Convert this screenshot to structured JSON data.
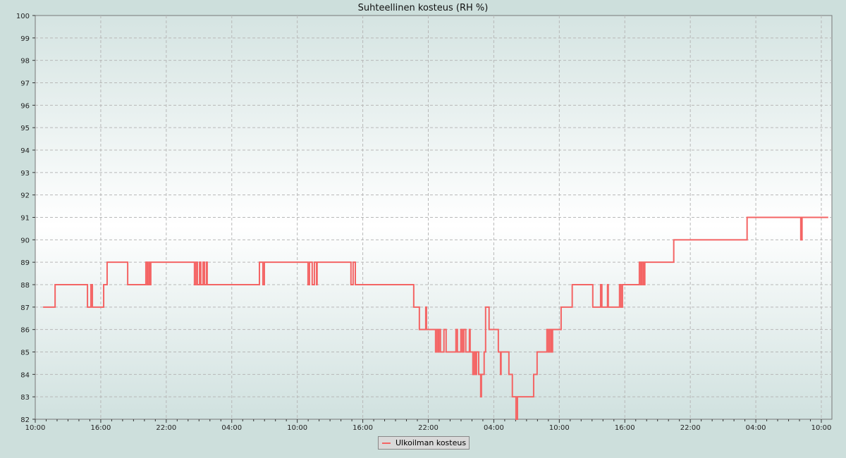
{
  "chart_data": {
    "type": "line",
    "step": true,
    "title": "Suhteellinen kosteus (RH %)",
    "xlabel": "",
    "ylabel": "",
    "ylim": [
      82,
      100
    ],
    "yticks": [
      "82",
      "83",
      "84",
      "85",
      "86",
      "87",
      "88",
      "89",
      "90",
      "91",
      "92",
      "93",
      "94",
      "95",
      "96",
      "97",
      "98",
      "99",
      "100"
    ],
    "xticks": [
      "10:00",
      "16:00",
      "22:00",
      "04:00",
      "10:00",
      "16:00",
      "22:00",
      "04:00",
      "10:00",
      "16:00",
      "22:00",
      "04:00",
      "10:00"
    ],
    "grid": true,
    "legend_placement": "bottom",
    "series": [
      {
        "name": "Ulkoilman kosteus",
        "color": "#f46464",
        "points_day_time_value": [
          [
            1,
            "10:43",
            87
          ],
          [
            1,
            "11:49",
            88
          ],
          [
            1,
            "14:47",
            87
          ],
          [
            1,
            "15:06",
            88
          ],
          [
            1,
            "15:14",
            87
          ],
          [
            1,
            "16:16",
            88
          ],
          [
            1,
            "16:35",
            89
          ],
          [
            1,
            "18:28",
            88
          ],
          [
            1,
            "20:08",
            89
          ],
          [
            1,
            "20:16",
            88
          ],
          [
            1,
            "20:24",
            89
          ],
          [
            1,
            "20:31",
            88
          ],
          [
            1,
            "20:35",
            89
          ],
          [
            2,
            "00:35",
            88
          ],
          [
            2,
            "00:43",
            89
          ],
          [
            2,
            "00:51",
            88
          ],
          [
            2,
            "01:03",
            89
          ],
          [
            2,
            "01:10",
            88
          ],
          [
            2,
            "01:22",
            89
          ],
          [
            2,
            "01:30",
            88
          ],
          [
            2,
            "01:41",
            89
          ],
          [
            2,
            "01:45",
            88
          ],
          [
            2,
            "06:32",
            89
          ],
          [
            2,
            "06:51",
            88
          ],
          [
            2,
            "06:59",
            89
          ],
          [
            2,
            "10:59",
            88
          ],
          [
            2,
            "11:07",
            89
          ],
          [
            2,
            "11:22",
            88
          ],
          [
            2,
            "11:34",
            89
          ],
          [
            2,
            "11:46",
            88
          ],
          [
            2,
            "11:49",
            89
          ],
          [
            2,
            "14:55",
            88
          ],
          [
            2,
            "15:07",
            89
          ],
          [
            2,
            "15:19",
            88
          ],
          [
            2,
            "20:40",
            87
          ],
          [
            2,
            "21:11",
            86
          ],
          [
            2,
            "21:46",
            87
          ],
          [
            2,
            "21:50",
            86
          ],
          [
            2,
            "22:40",
            85
          ],
          [
            2,
            "22:48",
            86
          ],
          [
            2,
            "22:56",
            85
          ],
          [
            2,
            "22:59",
            86
          ],
          [
            2,
            "23:07",
            85
          ],
          [
            2,
            "23:26",
            86
          ],
          [
            2,
            "23:38",
            85
          ],
          [
            3,
            "00:32",
            86
          ],
          [
            3,
            "00:40",
            85
          ],
          [
            3,
            "00:59",
            86
          ],
          [
            3,
            "01:07",
            85
          ],
          [
            3,
            "01:15",
            86
          ],
          [
            3,
            "01:26",
            85
          ],
          [
            3,
            "01:46",
            86
          ],
          [
            3,
            "01:50",
            85
          ],
          [
            3,
            "02:05",
            84
          ],
          [
            3,
            "02:13",
            85
          ],
          [
            3,
            "02:21",
            84
          ],
          [
            3,
            "02:25",
            85
          ],
          [
            3,
            "02:37",
            84
          ],
          [
            3,
            "02:48",
            83
          ],
          [
            3,
            "02:52",
            84
          ],
          [
            3,
            "03:07",
            85
          ],
          [
            3,
            "03:15",
            87
          ],
          [
            3,
            "03:34",
            86
          ],
          [
            3,
            "04:25",
            85
          ],
          [
            3,
            "04:37",
            84
          ],
          [
            3,
            "04:40",
            85
          ],
          [
            3,
            "05:23",
            84
          ],
          [
            3,
            "05:42",
            83
          ],
          [
            3,
            "06:02",
            82
          ],
          [
            3,
            "06:10",
            83
          ],
          [
            3,
            "07:39",
            84
          ],
          [
            3,
            "07:58",
            85
          ],
          [
            3,
            "08:52",
            86
          ],
          [
            3,
            "09:00",
            85
          ],
          [
            3,
            "09:08",
            86
          ],
          [
            3,
            "09:16",
            85
          ],
          [
            3,
            "09:23",
            86
          ],
          [
            3,
            "10:10",
            87
          ],
          [
            3,
            "11:11",
            88
          ],
          [
            3,
            "13:04",
            87
          ],
          [
            3,
            "13:47",
            88
          ],
          [
            3,
            "13:54",
            87
          ],
          [
            3,
            "14:25",
            88
          ],
          [
            3,
            "14:29",
            87
          ],
          [
            3,
            "15:31",
            88
          ],
          [
            3,
            "15:39",
            87
          ],
          [
            3,
            "15:47",
            88
          ],
          [
            3,
            "17:20",
            89
          ],
          [
            3,
            "17:28",
            88
          ],
          [
            3,
            "17:35",
            89
          ],
          [
            3,
            "17:43",
            88
          ],
          [
            3,
            "17:50",
            89
          ],
          [
            3,
            "20:29",
            90
          ],
          [
            4,
            "03:12",
            91
          ],
          [
            4,
            "08:07",
            90
          ],
          [
            4,
            "08:14",
            91
          ],
          [
            4,
            "10:38",
            91
          ]
        ]
      }
    ]
  }
}
